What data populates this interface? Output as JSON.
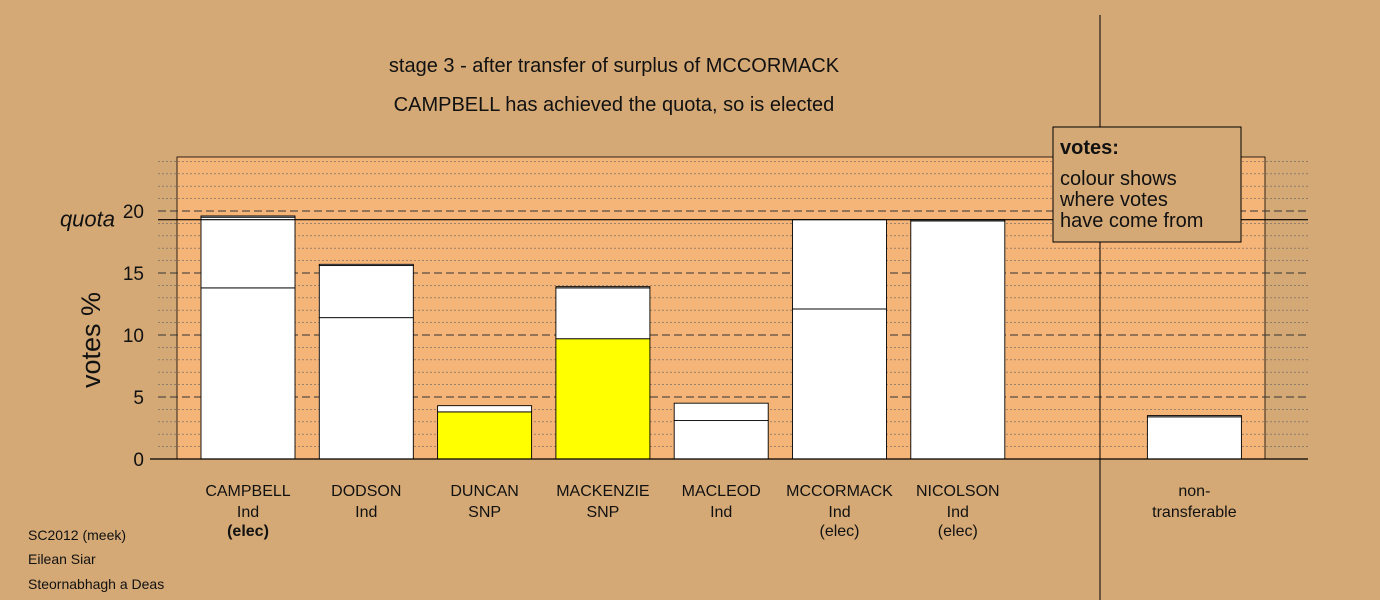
{
  "chart_data": {
    "type": "bar",
    "title": "stage 3 - after transfer of surplus of MCCORMACK",
    "subtitle": "CAMPBELL has achieved the quota, so is elected",
    "ylabel": "votes %",
    "ylim": [
      0,
      20
    ],
    "yticks": [
      "0",
      "5",
      "10",
      "15",
      "20"
    ],
    "quota": 19.3,
    "quota_label": "quota",
    "grid": true,
    "legend_position": "top-right",
    "categories": [
      {
        "name": "CAMPBELL",
        "party": "Ind",
        "status": "(elec)",
        "bold_status": true
      },
      {
        "name": "DODSON",
        "party": "Ind",
        "status": ""
      },
      {
        "name": "DUNCAN",
        "party": "SNP",
        "status": ""
      },
      {
        "name": "MACKENZIE",
        "party": "SNP",
        "status": ""
      },
      {
        "name": "MACLEOD",
        "party": "Ind",
        "status": ""
      },
      {
        "name": "MCCORMACK",
        "party": "Ind",
        "status": "(elec)"
      },
      {
        "name": "NICOLSON",
        "party": "Ind",
        "status": "(elec)"
      },
      {
        "name": "",
        "party": "",
        "status": ""
      },
      {
        "name": "non-",
        "party": "transferable",
        "status": ""
      }
    ],
    "segments": [
      [
        {
          "value": 13.8,
          "color": "#ffffff"
        },
        {
          "value": 5.7,
          "color": "#ffffff"
        },
        {
          "value": 0.1,
          "color": "#ffffff"
        }
      ],
      [
        {
          "value": 11.4,
          "color": "#ffffff"
        },
        {
          "value": 4.2,
          "color": "#ffffff"
        },
        {
          "value": 0.1,
          "color": "#ffffff"
        }
      ],
      [
        {
          "value": 3.8,
          "color": "#ffff00"
        },
        {
          "value": 0.5,
          "color": "#ffffff"
        }
      ],
      [
        {
          "value": 9.7,
          "color": "#ffff00"
        },
        {
          "value": 4.1,
          "color": "#ffffff"
        },
        {
          "value": 0.1,
          "color": "#ffffff"
        }
      ],
      [
        {
          "value": 3.1,
          "color": "#ffffff"
        },
        {
          "value": 1.4,
          "color": "#ffffff"
        }
      ],
      [
        {
          "value": 12.1,
          "color": "#ffffff"
        },
        {
          "value": 7.2,
          "color": "#ffffff"
        }
      ],
      [
        {
          "value": 19.2,
          "color": "#ffffff"
        },
        {
          "value": 0.1,
          "color": "#ffffff"
        }
      ],
      [],
      [
        {
          "value": 3.4,
          "color": "#ffffff"
        },
        {
          "value": 0.1,
          "color": "#ffffff"
        }
      ]
    ]
  },
  "legend": {
    "heading": "votes:",
    "lines": [
      "colour shows",
      "where votes",
      "have come from"
    ]
  },
  "footer": {
    "lines": [
      "SC2012 (meek)",
      "Eilean Siar",
      "Steornabhagh a Deas"
    ]
  },
  "colors": {
    "background": "#d4a976",
    "plot_area": "#f5b478",
    "bar": "#ffffff",
    "transfer_snp": "#ffff00",
    "legend_box": "#d4a976"
  }
}
